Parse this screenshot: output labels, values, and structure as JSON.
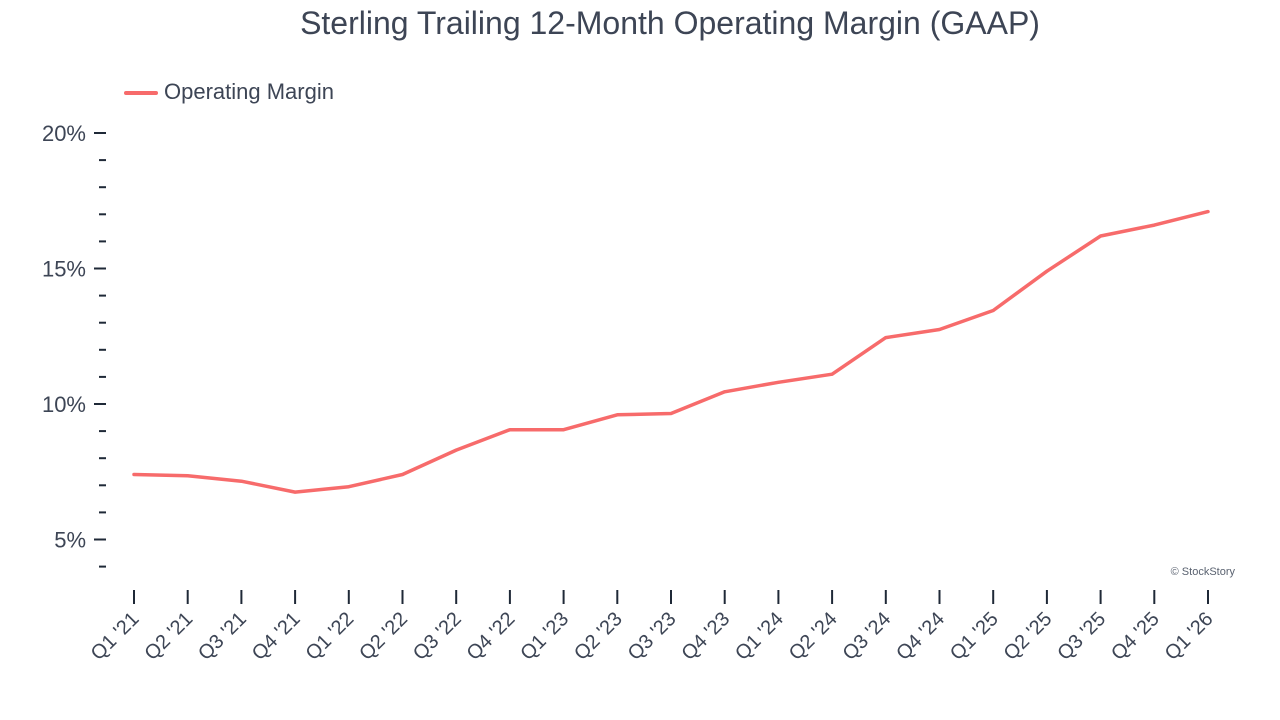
{
  "chart_data": {
    "type": "line",
    "title": "Sterling Trailing 12-Month Operating Margin (GAAP)",
    "xlabel": "",
    "ylabel": "",
    "categories": [
      "Q1 '21",
      "Q2 '21",
      "Q3 '21",
      "Q4 '21",
      "Q1 '22",
      "Q2 '22",
      "Q3 '22",
      "Q4 '22",
      "Q1 '23",
      "Q2 '23",
      "Q3 '23",
      "Q4 '23",
      "Q1 '24",
      "Q2 '24",
      "Q3 '24",
      "Q4 '24",
      "Q1 '25",
      "Q2 '25",
      "Q3 '25",
      "Q4 '25",
      "Q1 '26"
    ],
    "series": [
      {
        "name": "Operating Margin",
        "color": "#f76b6b",
        "values": [
          7.4,
          7.35,
          7.15,
          6.75,
          6.95,
          7.4,
          8.3,
          9.05,
          9.05,
          9.6,
          9.65,
          10.45,
          10.8,
          11.1,
          12.45,
          12.75,
          13.45,
          14.9,
          16.2,
          16.6,
          17.1
        ]
      }
    ],
    "ylim": [
      4,
      20
    ],
    "yticks": [
      {
        "value": 5,
        "label": "5%"
      },
      {
        "value": 10,
        "label": "10%"
      },
      {
        "value": 15,
        "label": "15%"
      },
      {
        "value": 20,
        "label": "20%"
      }
    ],
    "minor_step": 1,
    "grid": false,
    "legend_position": "top-left",
    "credit": "© StockStory"
  }
}
